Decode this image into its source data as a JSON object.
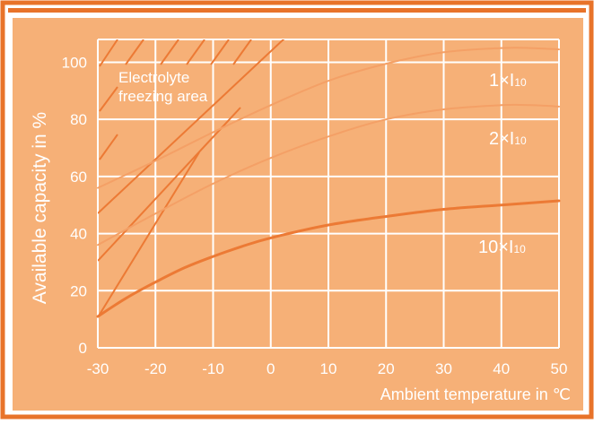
{
  "chart_data": {
    "type": "line",
    "xlabel": "Ambient temperature in ℃",
    "ylabel": "Available capacity in %",
    "xlim": [
      -30,
      50
    ],
    "ylim": [
      0,
      108
    ],
    "x_ticks": [
      "-30",
      "-20",
      "-10",
      "0",
      "10",
      "20",
      "30",
      "40",
      "50"
    ],
    "y_ticks": [
      "0",
      "20",
      "40",
      "60",
      "80",
      "100"
    ],
    "grid": true,
    "annotation": "Electrolyte freezing area",
    "series": [
      {
        "name": "1×I10",
        "label_main": "1×I",
        "label_sub": "10",
        "x": [
          -30,
          -20,
          -10,
          0,
          10,
          20,
          30,
          40,
          45,
          50
        ],
        "y": [
          56,
          65.5,
          75.5,
          85,
          93.5,
          99.5,
          103.5,
          105,
          105,
          104.5
        ]
      },
      {
        "name": "2×I10",
        "label_main": "2×I",
        "label_sub": "10",
        "x": [
          -30,
          -20,
          -10,
          0,
          10,
          20,
          30,
          40,
          45,
          50
        ],
        "y": [
          36,
          47,
          57.5,
          66.5,
          74,
          80,
          83.5,
          85,
          85,
          84.5
        ]
      },
      {
        "name": "10×I10",
        "label_main": "10×I",
        "label_sub": "10",
        "x": [
          -30,
          -25,
          -20,
          -15,
          -10,
          -5,
          0,
          10,
          20,
          30,
          40,
          50
        ],
        "y": [
          11,
          17.5,
          23,
          28,
          32,
          35.5,
          38.5,
          43,
          46,
          48.5,
          50,
          51.5
        ]
      }
    ],
    "colors": {
      "frame": "#e8732a",
      "panel": "#f6b077",
      "grid": "#ffffff",
      "series_1": "#f4a066",
      "series_2": "#f4a066",
      "series_3": "#ec7a35",
      "hatch": "#ec7a35"
    }
  }
}
